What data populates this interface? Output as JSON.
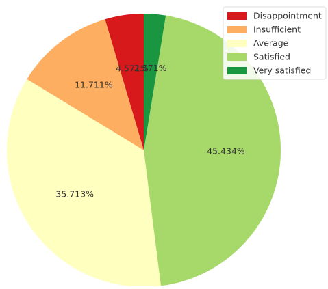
{
  "chart_data": {
    "type": "pie",
    "title": "",
    "start_angle_deg": 90,
    "direction": "counterclockwise",
    "slices": [
      {
        "label": "Disappointment",
        "value": 4.571,
        "value_label": "4.571%",
        "color": "#d7191c"
      },
      {
        "label": "Insufficient",
        "value": 11.711,
        "value_label": "11.711%",
        "color": "#fdae61"
      },
      {
        "label": "Average",
        "value": 35.713,
        "value_label": "35.713%",
        "color": "#ffffbf"
      },
      {
        "label": "Satisfied",
        "value": 45.434,
        "value_label": "45.434%",
        "color": "#a6d96a"
      },
      {
        "label": "Very satisfied",
        "value": 2.571,
        "value_label": "2.571%",
        "color": "#1a9641"
      }
    ],
    "legend": {
      "placement": "top-right",
      "entries": [
        "Disappointment",
        "Insufficient",
        "Average",
        "Satisfied",
        "Very satisfied"
      ]
    }
  }
}
